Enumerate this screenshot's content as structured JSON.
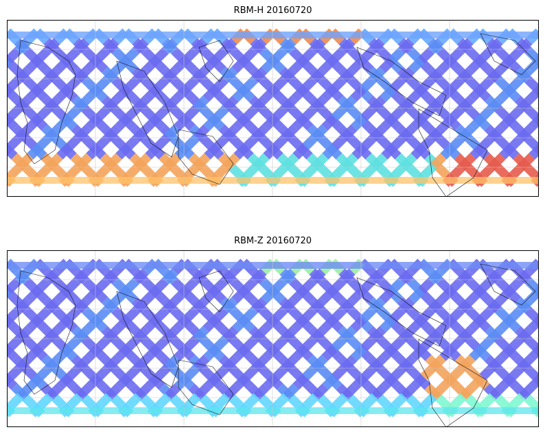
{
  "figure": {
    "panels": [
      {
        "title": "RBM-H 20160720",
        "swath_palette": "hot"
      },
      {
        "title": "RBM-Z 20160720",
        "swath_palette": "cool"
      }
    ]
  },
  "colors": {
    "low": "#6a6af0",
    "mid": "#56c8f5",
    "high": "#e55b4d"
  }
}
